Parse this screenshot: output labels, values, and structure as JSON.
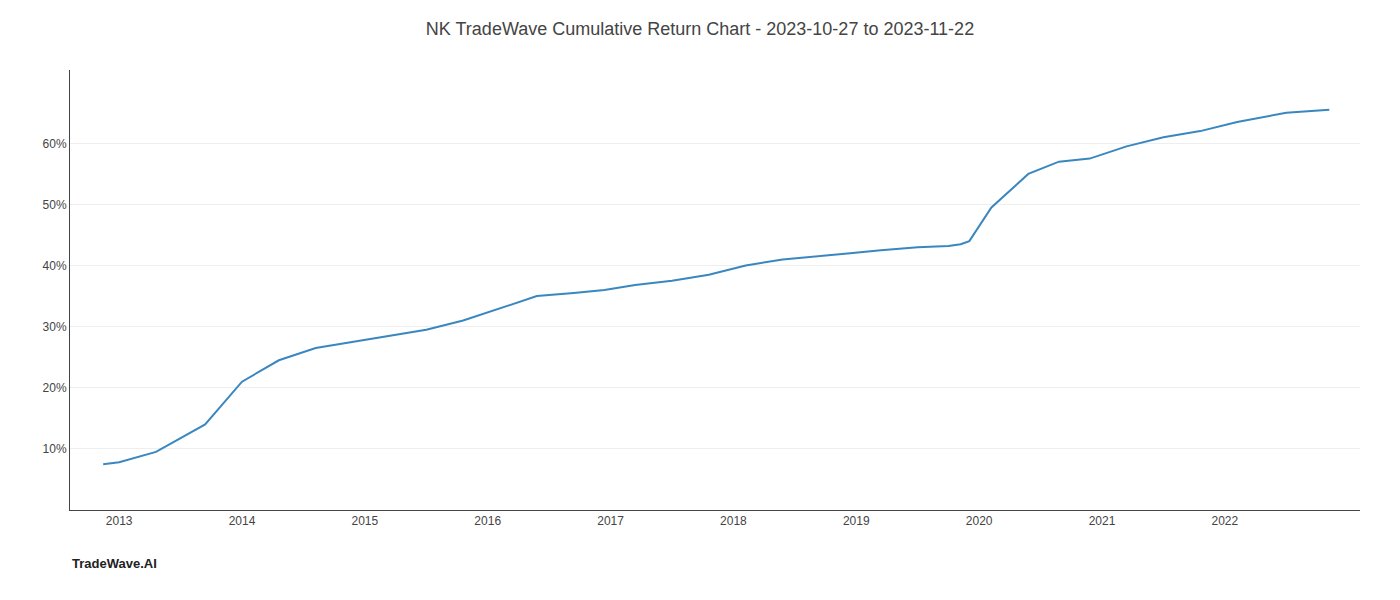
{
  "chart_data": {
    "type": "line",
    "title": "NK TradeWave Cumulative Return Chart - 2023-10-27 to 2023-11-22",
    "annotations": [
      "TradeWave.AI"
    ],
    "x": [
      2012.87,
      2013.0,
      2013.3,
      2013.7,
      2014.0,
      2014.3,
      2014.6,
      2014.9,
      2015.2,
      2015.5,
      2015.8,
      2016.1,
      2016.4,
      2016.7,
      2016.95,
      2017.2,
      2017.5,
      2017.8,
      2018.1,
      2018.4,
      2018.7,
      2018.95,
      2019.2,
      2019.5,
      2019.75,
      2019.85,
      2019.92,
      2020.1,
      2020.4,
      2020.65,
      2020.9,
      2021.2,
      2021.5,
      2021.8,
      2022.1,
      2022.5,
      2022.85
    ],
    "values": [
      7.5,
      7.8,
      9.5,
      14.0,
      21.0,
      24.5,
      26.5,
      27.5,
      28.5,
      29.5,
      31.0,
      33.0,
      35.0,
      35.5,
      36.0,
      36.8,
      37.5,
      38.5,
      40.0,
      41.0,
      41.5,
      42.0,
      42.5,
      43.0,
      43.2,
      43.5,
      44.0,
      49.5,
      55.0,
      57.0,
      57.5,
      59.5,
      61.0,
      62.0,
      63.5,
      65.0,
      65.5
    ],
    "color": "#3a87c0",
    "xlim": [
      2012.6,
      2023.1
    ],
    "xticks": [
      2013,
      2014,
      2015,
      2016,
      2017,
      2018,
      2019,
      2020,
      2021,
      2022
    ],
    "ylim": [
      0,
      72
    ],
    "yticks": [
      {
        "value": 10,
        "label": "10%"
      },
      {
        "value": 20,
        "label": "20%"
      },
      {
        "value": 30,
        "label": "30%"
      },
      {
        "value": 40,
        "label": "40%"
      },
      {
        "value": 50,
        "label": "50%"
      },
      {
        "value": 60,
        "label": "60%"
      }
    ],
    "grid": true
  }
}
